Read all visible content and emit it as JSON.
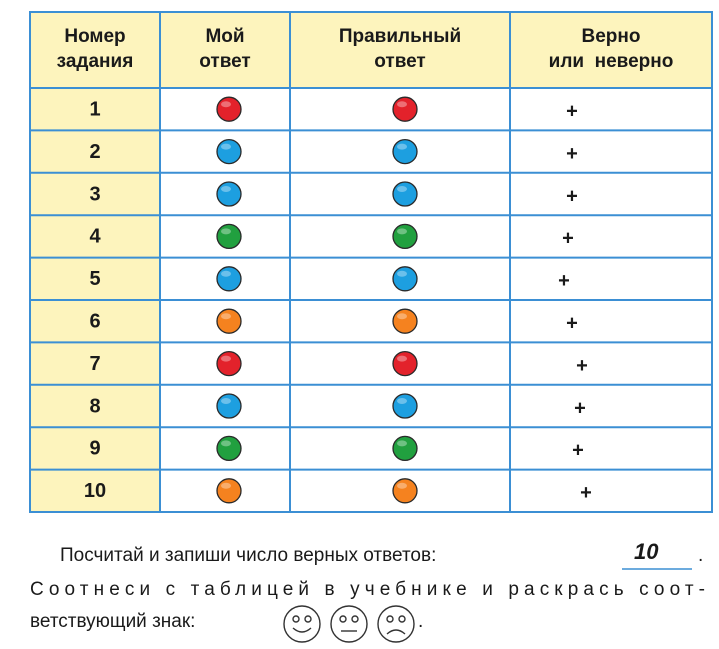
{
  "table": {
    "headers": [
      [
        "Номер",
        "задания"
      ],
      [
        "Мой",
        "ответ"
      ],
      [
        "Правильный",
        "ответ"
      ],
      [
        "Верно",
        "или  неверно"
      ]
    ],
    "rows": [
      {
        "number": 1,
        "my_answer": "#e3222b",
        "correct_answer": "#e3222b",
        "mark": "+"
      },
      {
        "number": 2,
        "my_answer": "#1d9fe0",
        "correct_answer": "#1d9fe0",
        "mark": "+"
      },
      {
        "number": 3,
        "my_answer": "#1d9fe0",
        "correct_answer": "#1d9fe0",
        "mark": "+"
      },
      {
        "number": 4,
        "my_answer": "#21a03f",
        "correct_answer": "#21a03f",
        "mark": "+"
      },
      {
        "number": 5,
        "my_answer": "#1d9fe0",
        "correct_answer": "#1d9fe0",
        "mark": "+"
      },
      {
        "number": 6,
        "my_answer": "#f5821f",
        "correct_answer": "#f5821f",
        "mark": "+"
      },
      {
        "number": 7,
        "my_answer": "#e3222b",
        "correct_answer": "#e3222b",
        "mark": "+"
      },
      {
        "number": 8,
        "my_answer": "#1d9fe0",
        "correct_answer": "#1d9fe0",
        "mark": "+"
      },
      {
        "number": 9,
        "my_answer": "#21a03f",
        "correct_answer": "#21a03f",
        "mark": "+"
      },
      {
        "number": 10,
        "my_answer": "#f5821f",
        "correct_answer": "#f5821f",
        "mark": "+"
      }
    ]
  },
  "instructions": {
    "line1": "Посчитай и запиши число верных ответов:",
    "answer": "10",
    "line1_end": ".",
    "line2": "Соотнеси с таблицей в учебнике и раскрась соот-",
    "line3": "ветствующий знак:",
    "line3_end": "."
  }
}
